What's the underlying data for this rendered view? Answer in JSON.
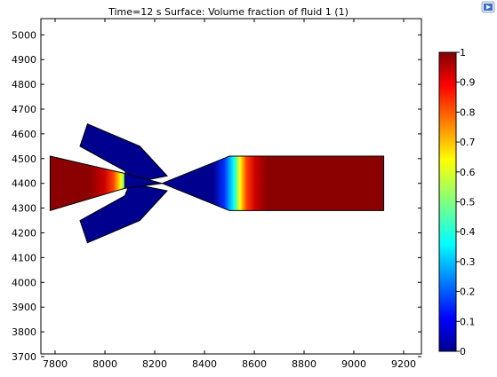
{
  "plot": {
    "title": "Time=12 s   Surface: Volume fraction of fluid 1 (1)"
  },
  "toolbar": {
    "icon": "plot-window-icon"
  },
  "colors": {
    "colormap": "jet",
    "low": "#00008f",
    "high": "#800000",
    "frame": "#000000",
    "background": "#ffffff"
  },
  "chart_data": {
    "type": "heatmap",
    "title": "Time=12 s   Surface: Volume fraction of fluid 1 (1)",
    "xlabel": "",
    "ylabel": "",
    "xlim": [
      7740,
      9280
    ],
    "ylim": [
      3690,
      5050
    ],
    "grid": false,
    "x_ticks": [
      "7800",
      "8000",
      "8200",
      "8400",
      "8600",
      "8800",
      "9000",
      "9200"
    ],
    "y_ticks": [
      "5000",
      "4900",
      "4800",
      "4700",
      "4600",
      "4500",
      "4400",
      "4300",
      "4200",
      "4100",
      "4000",
      "3900",
      "3800",
      "3700"
    ],
    "colorbar": {
      "min": 0,
      "max": 1,
      "ticks": [
        "1",
        "0.9",
        "0.8",
        "0.7",
        "0.6",
        "0.5",
        "0.4",
        "0.3",
        "0.2",
        "0.1",
        "0"
      ],
      "colormap": "jet"
    },
    "field": {
      "description_values": [
        {
          "region": "left inlet channel (x 7780–8060)",
          "value": 1.0
        },
        {
          "region": "interface near x≈8070",
          "value": 0.5
        },
        {
          "region": "side branches and junction (x 8060–8520)",
          "value": 0.0
        },
        {
          "region": "interface near x≈8550",
          "value": 0.5
        },
        {
          "region": "outlet channel (x 8570–9120)",
          "value": 1.0
        }
      ]
    }
  }
}
